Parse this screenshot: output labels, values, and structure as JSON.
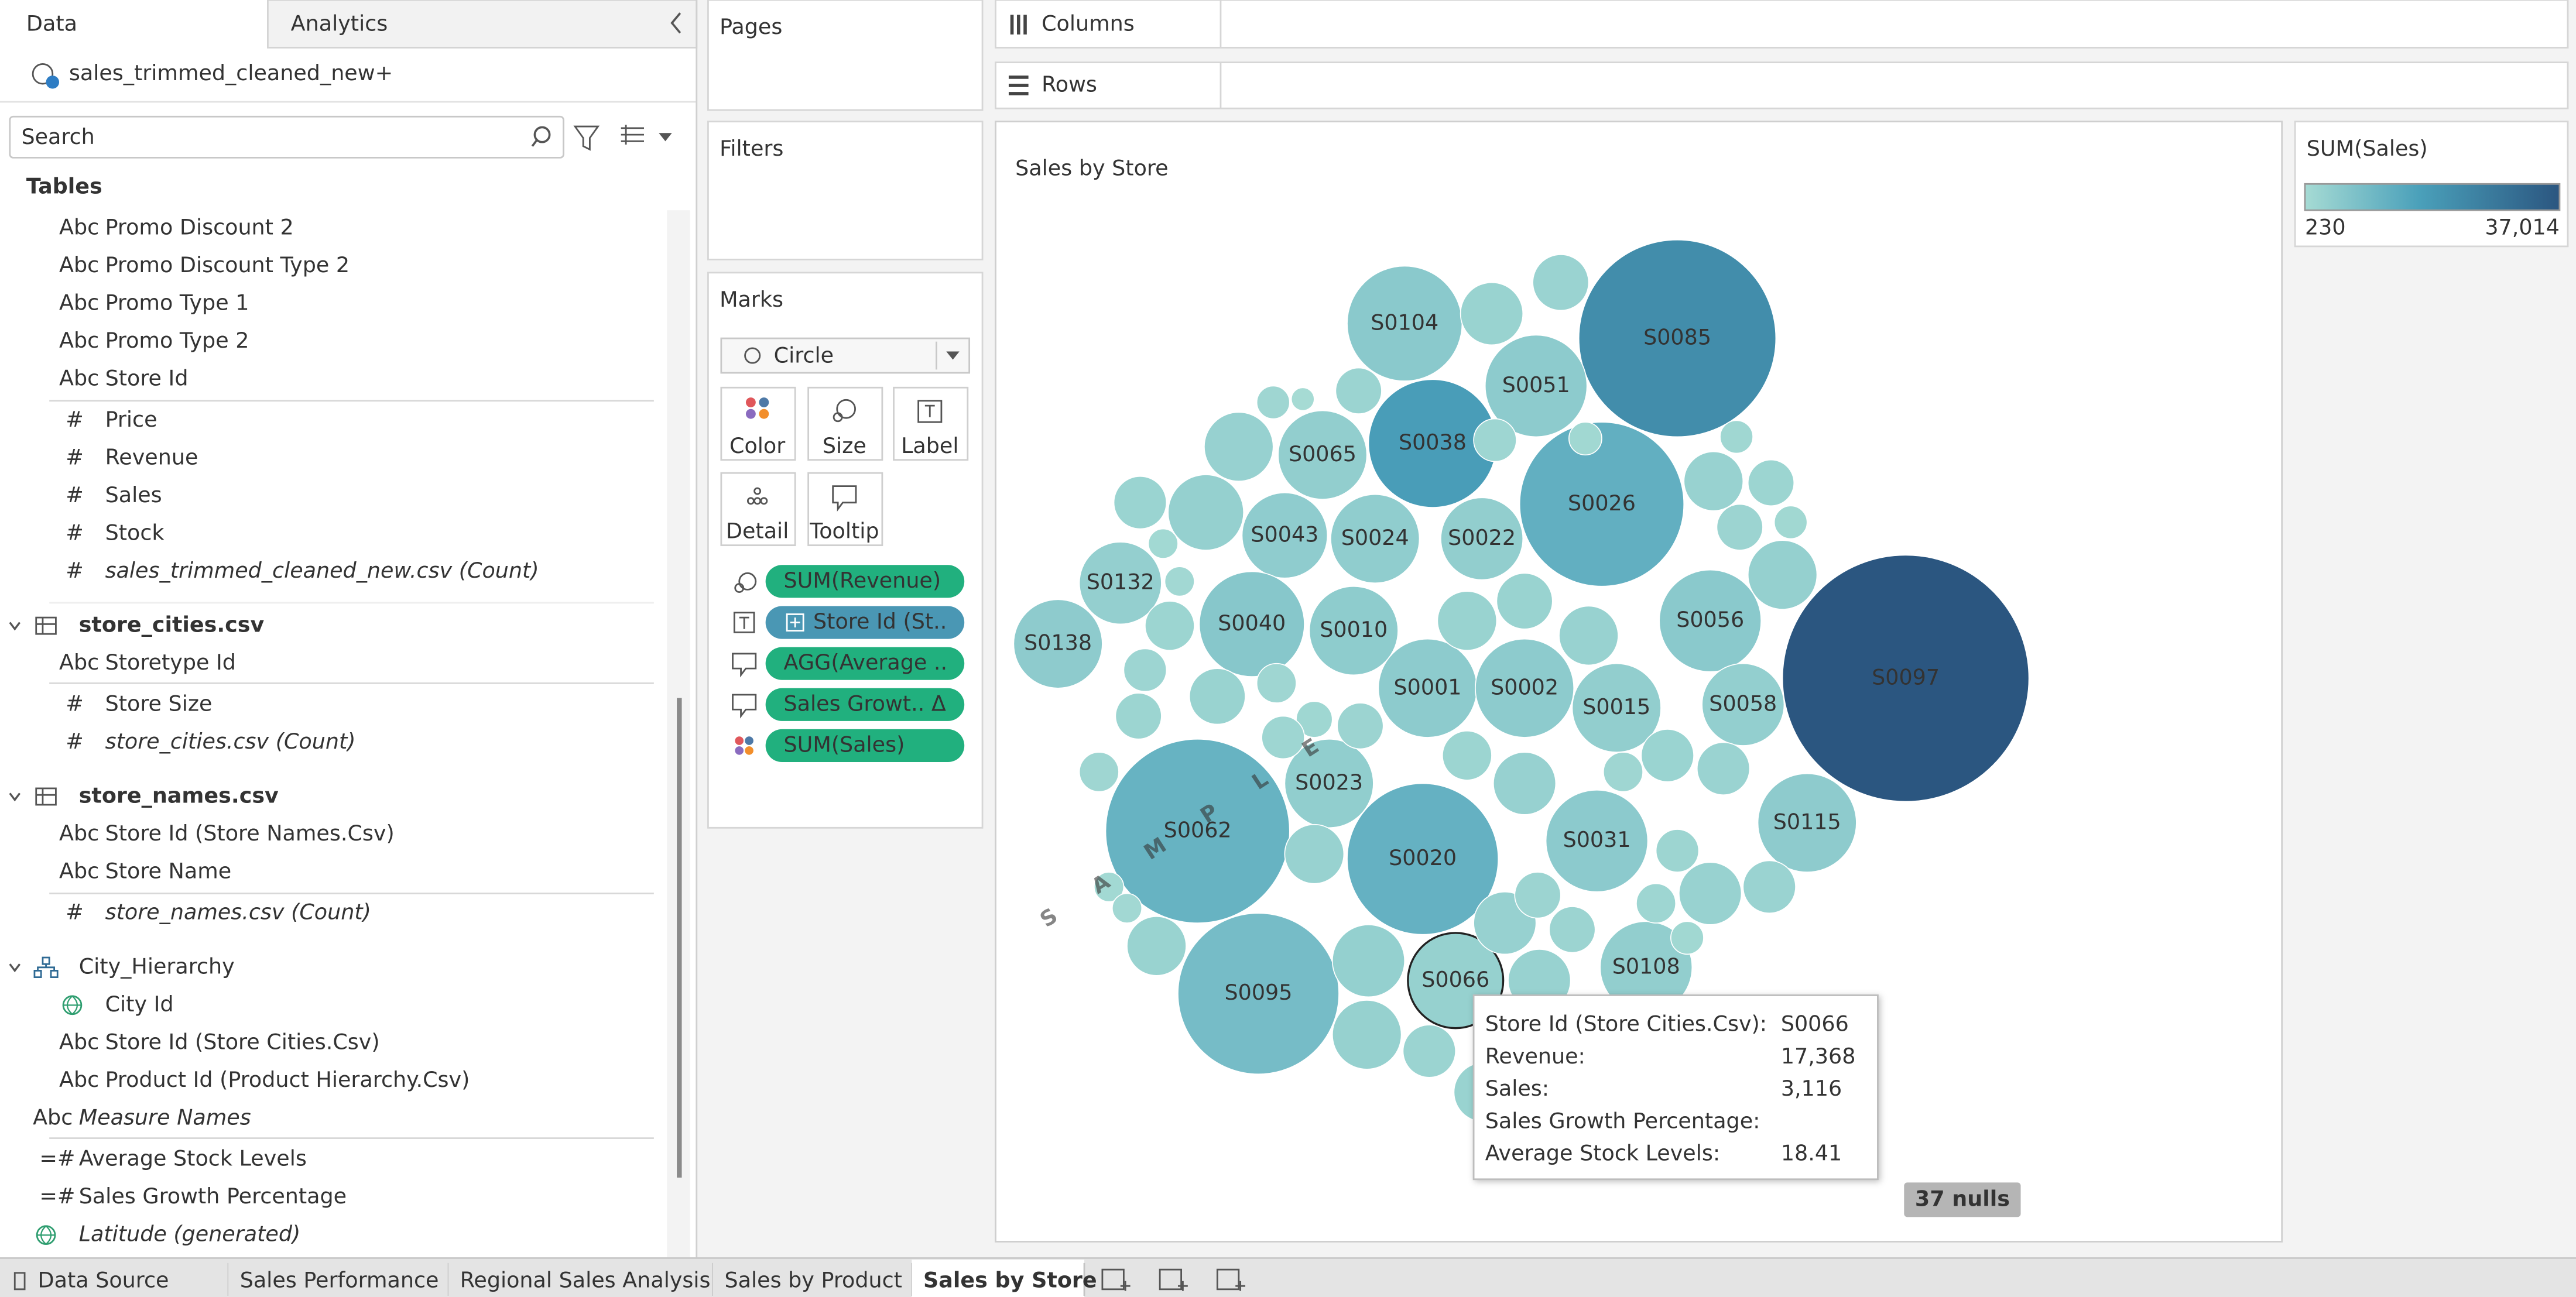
{
  "sidebar": {
    "tabs": [
      "Data",
      "Analytics"
    ],
    "datasource": "sales_trimmed_cleaned_new+",
    "search_placeholder": "Search",
    "tables_heading": "Tables",
    "fields": [
      {
        "icon": "Abc",
        "label": "Promo Discount 2",
        "level": 1
      },
      {
        "icon": "Abc",
        "label": "Promo Discount Type 2",
        "level": 1
      },
      {
        "icon": "Abc",
        "label": "Promo Type 1",
        "level": 1
      },
      {
        "icon": "Abc",
        "label": "Promo Type 2",
        "level": 1
      },
      {
        "icon": "Abc",
        "label": "Store Id",
        "level": 1
      },
      {
        "icon": "#",
        "label": "Price",
        "level": 1
      },
      {
        "icon": "#",
        "label": "Revenue",
        "level": 1
      },
      {
        "icon": "#",
        "label": "Sales",
        "level": 1
      },
      {
        "icon": "#",
        "label": "Stock",
        "level": 1
      },
      {
        "icon": "#",
        "label": "sales_trimmed_cleaned_new.csv (Count)",
        "level": 1,
        "italic": true
      },
      {
        "kind": "table",
        "label": "store_cities.csv",
        "level": 0
      },
      {
        "icon": "Abc",
        "label": "Storetype Id",
        "level": 1
      },
      {
        "icon": "#",
        "label": "Store Size",
        "level": 1
      },
      {
        "icon": "#",
        "label": "store_cities.csv (Count)",
        "level": 1,
        "italic": true
      },
      {
        "kind": "table",
        "label": "store_names.csv",
        "level": 0
      },
      {
        "icon": "Abc",
        "label": "Store Id (Store Names.Csv)",
        "level": 1
      },
      {
        "icon": "Abc",
        "label": "Store Name",
        "level": 1
      },
      {
        "icon": "#",
        "label": "store_names.csv (Count)",
        "level": 1,
        "italic": true
      },
      {
        "kind": "hierarchy",
        "label": "City_Hierarchy",
        "level": 0
      },
      {
        "kind": "globe",
        "label": "City Id",
        "level": 1
      },
      {
        "icon": "Abc",
        "label": "Store Id (Store Cities.Csv)",
        "level": 1
      },
      {
        "icon": "Abc",
        "label": "Product Id (Product Hierarchy.Csv)",
        "level": 1
      },
      {
        "icon": "Abc",
        "label": "Measure Names",
        "level": 0,
        "italic": true
      },
      {
        "icon": "=#",
        "label": "Average Stock Levels",
        "level": 0
      },
      {
        "icon": "=#",
        "label": "Sales Growth Percentage",
        "level": 0
      },
      {
        "kind": "globe",
        "label": "Latitude (generated)",
        "level": 0,
        "italic": true
      }
    ]
  },
  "shelves": {
    "pages": "Pages",
    "filters": "Filters",
    "columns": "Columns",
    "rows": "Rows"
  },
  "marks": {
    "title": "Marks",
    "mark_type": "Circle",
    "buttons": [
      "Color",
      "Size",
      "Label",
      "Detail",
      "Tooltip"
    ],
    "pills": [
      {
        "kind": "size",
        "label": "SUM(Revenue)",
        "role": "measure"
      },
      {
        "kind": "label",
        "label": "Store Id (St..",
        "role": "dimension"
      },
      {
        "kind": "tooltip",
        "label": "AGG(Average ..",
        "role": "measure"
      },
      {
        "kind": "tooltip",
        "label": "Sales Growt.. Δ",
        "role": "measure"
      },
      {
        "kind": "color",
        "label": "SUM(Sales)",
        "role": "measure"
      }
    ]
  },
  "viz": {
    "title": "Sales by Store",
    "watermark": "SAMPLE",
    "nulls": "37 nulls",
    "legend": {
      "title": "SUM(Sales)",
      "min": 230,
      "max": {
        "value": 37014,
        "label": "37,014"
      }
    },
    "bubbles": [
      {
        "label": "S0104",
        "revenue": 25300,
        "sales": 5200
      },
      {
        "label": "S0085",
        "revenue": 74300,
        "sales": 22000
      },
      {
        "label": "S0051",
        "revenue": 19850,
        "sales": 4800
      },
      {
        "label": "S0065",
        "revenue": 15060,
        "sales": 3900
      },
      {
        "label": "S0038",
        "revenue": 31400,
        "sales": 17500
      },
      {
        "label": "S0026",
        "revenue": 51600,
        "sales": 12500
      },
      {
        "label": "S0043",
        "revenue": 13960,
        "sales": 4300
      },
      {
        "label": "S0024",
        "revenue": 15060,
        "sales": 4200
      },
      {
        "label": "S0022",
        "revenue": 12910,
        "sales": 3800
      },
      {
        "label": "S0132",
        "revenue": 12910,
        "sales": 3500
      },
      {
        "label": "S0097",
        "revenue": 116200,
        "sales": 37014
      },
      {
        "label": "S0040",
        "revenue": 21150,
        "sales": 5800
      },
      {
        "label": "S0010",
        "revenue": 15060,
        "sales": 4500
      },
      {
        "label": "S0056",
        "revenue": 19850,
        "sales": 5200
      },
      {
        "label": "S0138",
        "revenue": 15060,
        "sales": 4600
      },
      {
        "label": "S0001",
        "revenue": 18580,
        "sales": 4700
      },
      {
        "label": "S0002",
        "revenue": 18580,
        "sales": 4800
      },
      {
        "label": "S0015",
        "revenue": 15060,
        "sales": 3900
      },
      {
        "label": "S0058",
        "revenue": 12910,
        "sales": 3700
      },
      {
        "label": "S0023",
        "revenue": 15060,
        "sales": 4000
      },
      {
        "label": "S0062",
        "revenue": 64770,
        "sales": 11500
      },
      {
        "label": "S0020",
        "revenue": 43700,
        "sales": 12000
      },
      {
        "label": "S0095",
        "revenue": 49590,
        "sales": 8800
      },
      {
        "label": "S0066",
        "revenue": 17368,
        "sales": 3116,
        "selected": true
      },
      {
        "label": "S0031",
        "revenue": 19850,
        "sales": 4900
      },
      {
        "label": "S0115",
        "revenue": 18580,
        "sales": 4600
      },
      {
        "label": "S0108",
        "revenue": 16190,
        "sales": 3900
      },
      {
        "label": null,
        "revenue": 5968,
        "sales": 2400
      },
      {
        "label": null,
        "revenue": 7455,
        "sales": 2600
      },
      {
        "label": null,
        "revenue": 2065,
        "sales": 1500
      },
      {
        "label": null,
        "revenue": 1012,
        "sales": 230
      },
      {
        "label": null,
        "revenue": 4047,
        "sales": 2200
      },
      {
        "label": null,
        "revenue": 9107,
        "sales": 3000
      },
      {
        "label": null,
        "revenue": 5286,
        "sales": 2300
      },
      {
        "label": null,
        "revenue": 10924,
        "sales": 3200
      },
      {
        "label": null,
        "revenue": 1673,
        "sales": 900
      },
      {
        "label": null,
        "revenue": 1673,
        "sales": 1000
      },
      {
        "label": null,
        "revenue": 4646,
        "sales": 2000
      },
      {
        "label": null,
        "revenue": 3490,
        "sales": 1800
      },
      {
        "label": null,
        "revenue": 5968,
        "sales": 2500
      },
      {
        "label": null,
        "revenue": 2974,
        "sales": 1500
      },
      {
        "label": null,
        "revenue": 2498,
        "sales": 1400
      },
      {
        "label": null,
        "revenue": 4047,
        "sales": 2100
      },
      {
        "label": null,
        "revenue": 3490,
        "sales": 1700
      },
      {
        "label": null,
        "revenue": 6691,
        "sales": 2600
      },
      {
        "label": null,
        "revenue": 5968,
        "sales": 2500
      },
      {
        "label": null,
        "revenue": 6691,
        "sales": 2700
      },
      {
        "label": null,
        "revenue": 4646,
        "sales": 2000
      },
      {
        "label": null,
        "revenue": 7455,
        "sales": 2900
      },
      {
        "label": null,
        "revenue": 5286,
        "sales": 2300
      },
      {
        "label": null,
        "revenue": 5286,
        "sales": 2400
      },
      {
        "label": null,
        "revenue": 9107,
        "sales": 3300
      },
      {
        "label": null,
        "revenue": 2065,
        "sales": 1200
      },
      {
        "label": null,
        "revenue": 4047,
        "sales": 2100
      },
      {
        "label": null,
        "revenue": 4047,
        "sales": 2000
      },
      {
        "label": null,
        "revenue": 6691,
        "sales": 2800
      },
      {
        "label": null,
        "revenue": 1673,
        "sales": 900
      },
      {
        "label": null,
        "revenue": 1673,
        "sales": 1000
      },
      {
        "label": null,
        "revenue": 6691,
        "sales": 2500
      },
      {
        "label": null,
        "revenue": 6691,
        "sales": 2700
      },
      {
        "label": null,
        "revenue": 9995,
        "sales": 3400
      },
      {
        "label": null,
        "revenue": 9107,
        "sales": 3100
      },
      {
        "label": null,
        "revenue": 5286,
        "sales": 2200
      },
      {
        "label": null,
        "revenue": 7455,
        "sales": 2900
      },
      {
        "label": null,
        "revenue": 4047,
        "sales": 2100
      },
      {
        "label": null,
        "revenue": 7455,
        "sales": 2800
      },
      {
        "label": null,
        "revenue": 5286,
        "sales": 2400
      },
      {
        "label": null,
        "revenue": 2974,
        "sales": 1600
      },
      {
        "label": null,
        "revenue": 2974,
        "sales": 1500
      },
      {
        "label": null,
        "revenue": 3490,
        "sales": 1900
      },
      {
        "label": null,
        "revenue": 4047,
        "sales": 2000
      },
      {
        "label": null,
        "revenue": 2974,
        "sales": 1500
      },
      {
        "label": null,
        "revenue": 7455,
        "sales": 2800
      },
      {
        "label": null,
        "revenue": 4047,
        "sales": 2100
      },
      {
        "label": null,
        "revenue": 2065,
        "sales": 1200
      },
      {
        "label": null,
        "revenue": 3490,
        "sales": 1700
      },
      {
        "label": null,
        "revenue": 2065,
        "sales": 1300
      },
      {
        "label": null,
        "revenue": 2065,
        "sales": 1200
      },
      {
        "label": null,
        "revenue": 6691,
        "sales": 2600
      },
      {
        "label": null,
        "revenue": 5968,
        "sales": 2500
      }
    ],
    "tooltip": [
      {
        "label": "Store Id (Store Cities.Csv):",
        "value": "S0066"
      },
      {
        "label": "Revenue:",
        "value": "17,368"
      },
      {
        "label": "Sales:",
        "value": "3,116"
      },
      {
        "label": "Sales Growth Percentage:"
      },
      {
        "label": "Average Stock Levels:",
        "value": "18.41"
      }
    ]
  },
  "sheet_tabs": {
    "items": [
      "Data Source",
      "Sales Performance",
      "Regional Sales Analysis",
      "Sales by Product",
      "Sales by Store"
    ],
    "active": 4
  }
}
